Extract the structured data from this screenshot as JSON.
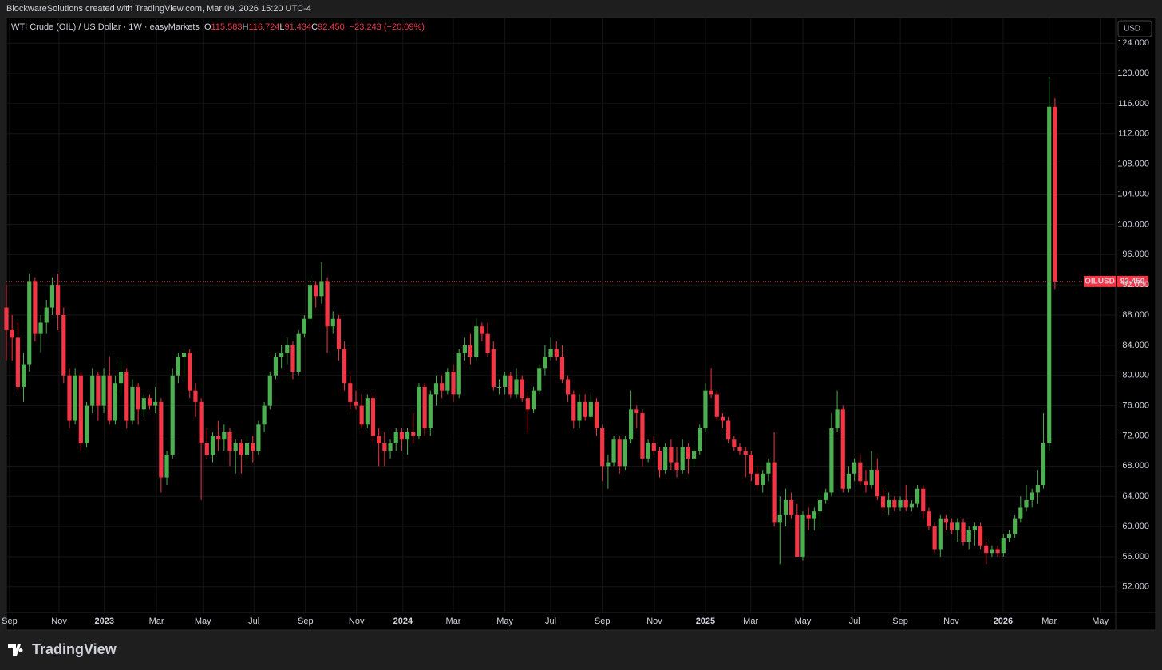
{
  "header": {
    "credit": "BlockwareSolutions created with TradingView.com, Mar 09, 2026 15:20 UTC-4"
  },
  "footer": {
    "brand": "TradingView"
  },
  "chart_data": {
    "type": "candlestick",
    "title": "WTI Crude (OIL) / US Dollar · 1W · easyMarkets",
    "legend": {
      "open_label": "O",
      "open": "115.583",
      "high_label": "H",
      "high": "116.724",
      "low_label": "L",
      "low": "91.434",
      "close_label": "C",
      "close": "92.450",
      "change": "−23.243 (−20.09%)"
    },
    "currency": "USD",
    "symbol": "OILUSD",
    "last_price": {
      "value": 92.45,
      "label": "92.450"
    },
    "up_color": "#4caf50",
    "down_color": "#f23645",
    "grid": true,
    "xlim": [
      0,
      193.6
    ],
    "ylim": [
      48.6,
      127.4
    ],
    "yticks": [
      {
        "value": 52,
        "label": "52.000"
      },
      {
        "value": 56,
        "label": "56.000"
      },
      {
        "value": 60,
        "label": "60.000"
      },
      {
        "value": 64,
        "label": "64.000"
      },
      {
        "value": 68,
        "label": "68.000"
      },
      {
        "value": 72,
        "label": "72.000"
      },
      {
        "value": 76,
        "label": "76.000"
      },
      {
        "value": 80,
        "label": "80.000"
      },
      {
        "value": 84,
        "label": "84.000"
      },
      {
        "value": 88,
        "label": "88.000"
      },
      {
        "value": 92,
        "label": "92.000"
      },
      {
        "value": 96,
        "label": "96.000"
      },
      {
        "value": 100,
        "label": "100.000"
      },
      {
        "value": 104,
        "label": "104.000"
      },
      {
        "value": 108,
        "label": "108.000"
      },
      {
        "value": 112,
        "label": "112.000"
      },
      {
        "value": 116,
        "label": "116.000"
      },
      {
        "value": 120,
        "label": "120.000"
      },
      {
        "value": 124,
        "label": "124.000"
      }
    ],
    "xticks": [
      {
        "value": 0.55,
        "label": "Sep"
      },
      {
        "value": 9.2,
        "label": "Nov"
      },
      {
        "value": 17.1,
        "label": "2023"
      },
      {
        "value": 26.2,
        "label": "Mar"
      },
      {
        "value": 34.3,
        "label": "May"
      },
      {
        "value": 43.2,
        "label": "Jul"
      },
      {
        "value": 52.2,
        "label": "Sep"
      },
      {
        "value": 61.1,
        "label": "Nov"
      },
      {
        "value": 69.2,
        "label": "2024"
      },
      {
        "value": 78,
        "label": "Mar"
      },
      {
        "value": 87,
        "label": "May"
      },
      {
        "value": 95,
        "label": "Jul"
      },
      {
        "value": 104,
        "label": "Sep"
      },
      {
        "value": 113.1,
        "label": "Nov"
      },
      {
        "value": 122,
        "label": "2025"
      },
      {
        "value": 129.9,
        "label": "Mar"
      },
      {
        "value": 139,
        "label": "May"
      },
      {
        "value": 148,
        "label": "Jul"
      },
      {
        "value": 156,
        "label": "Sep"
      },
      {
        "value": 164.9,
        "label": "Nov"
      },
      {
        "value": 173.95,
        "label": "2026"
      },
      {
        "value": 182,
        "label": "Mar"
      },
      {
        "value": 190.9,
        "label": "May"
      }
    ],
    "ohlc": [
      [
        89,
        92,
        82,
        86
      ],
      [
        86,
        88,
        82,
        85
      ],
      [
        85,
        87,
        78,
        78.5
      ],
      [
        78.5,
        83,
        76.5,
        81.5
      ],
      [
        81.5,
        93.5,
        80.5,
        92.5
      ],
      [
        92.5,
        93,
        84.5,
        85.5
      ],
      [
        85.5,
        88,
        83,
        87
      ],
      [
        87,
        90,
        85.5,
        89
      ],
      [
        89,
        93,
        88,
        92
      ],
      [
        92,
        93.5,
        86,
        88
      ],
      [
        88,
        89,
        79,
        80
      ],
      [
        80,
        81,
        73,
        74
      ],
      [
        74,
        81,
        73.5,
        80
      ],
      [
        80,
        80.5,
        70,
        71
      ],
      [
        71,
        76.5,
        70.5,
        76
      ],
      [
        76,
        81,
        75,
        80
      ],
      [
        80,
        80.5,
        74,
        76
      ],
      [
        76,
        81,
        75,
        80
      ],
      [
        80,
        82.5,
        73.5,
        74
      ],
      [
        74,
        80,
        73.5,
        79
      ],
      [
        79,
        82,
        77.5,
        80.5
      ],
      [
        80.5,
        81,
        73,
        74
      ],
      [
        74,
        79.5,
        73.5,
        78.5
      ],
      [
        78.5,
        79,
        73.5,
        75.5
      ],
      [
        75.5,
        77.5,
        74.5,
        77
      ],
      [
        77,
        77.5,
        75.5,
        76
      ],
      [
        76,
        78.5,
        75,
        76.5
      ],
      [
        76.5,
        77,
        64.5,
        66.5
      ],
      [
        66.5,
        70,
        65.5,
        69.5
      ],
      [
        69.5,
        81,
        69,
        80
      ],
      [
        80,
        83,
        79,
        82.5
      ],
      [
        82.5,
        83.5,
        79.5,
        83
      ],
      [
        83,
        83.5,
        77,
        78
      ],
      [
        78,
        79,
        74.5,
        76.5
      ],
      [
        76.5,
        77,
        63.5,
        71
      ],
      [
        71,
        73,
        69,
        69.5
      ],
      [
        69.5,
        72.5,
        68.5,
        72
      ],
      [
        72,
        74,
        70,
        71.5
      ],
      [
        71.5,
        73.5,
        70,
        72.5
      ],
      [
        72.5,
        73,
        68,
        70
      ],
      [
        70,
        71.5,
        67,
        71
      ],
      [
        71,
        71.5,
        67,
        69.5
      ],
      [
        69.5,
        72,
        68.5,
        71
      ],
      [
        71,
        72,
        68.5,
        70
      ],
      [
        70,
        74,
        69.5,
        73.5
      ],
      [
        73.5,
        76.5,
        72.5,
        76
      ],
      [
        76,
        80.5,
        75.5,
        80
      ],
      [
        80,
        83,
        79.5,
        82.5
      ],
      [
        82.5,
        84,
        81,
        83
      ],
      [
        83,
        85,
        81.5,
        84
      ],
      [
        84,
        84.5,
        79.5,
        80.5
      ],
      [
        80.5,
        86,
        80,
        85.5
      ],
      [
        85.5,
        88,
        85,
        87.5
      ],
      [
        87.5,
        93,
        87,
        92
      ],
      [
        92,
        92.5,
        89,
        90.5
      ],
      [
        90.5,
        95,
        89.5,
        92.5
      ],
      [
        92.5,
        93,
        83,
        86.5
      ],
      [
        86.5,
        88.5,
        85.5,
        87.5
      ],
      [
        87.5,
        88,
        82,
        83.5
      ],
      [
        83.5,
        84.5,
        78,
        79
      ],
      [
        79,
        80,
        75.5,
        76.5
      ],
      [
        76.5,
        78,
        75.5,
        76
      ],
      [
        76,
        77.5,
        73,
        73.5
      ],
      [
        73.5,
        77.5,
        73,
        77
      ],
      [
        77,
        77.5,
        71,
        72
      ],
      [
        72,
        73,
        68,
        71
      ],
      [
        71,
        72.5,
        68,
        70
      ],
      [
        70,
        71.5,
        69,
        71
      ],
      [
        71,
        73,
        70,
        72.5
      ],
      [
        72.5,
        73,
        70,
        71.5
      ],
      [
        71.5,
        73,
        69.5,
        72.5
      ],
      [
        72.5,
        75,
        71,
        72
      ],
      [
        72,
        79,
        71.5,
        78.5
      ],
      [
        78.5,
        79,
        72,
        73
      ],
      [
        73,
        78,
        72,
        77.5
      ],
      [
        77.5,
        80,
        76,
        79
      ],
      [
        79,
        80,
        77,
        78
      ],
      [
        78,
        81,
        77.5,
        80.5
      ],
      [
        80.5,
        81.5,
        76.5,
        77.5
      ],
      [
        77.5,
        83.5,
        77,
        83
      ],
      [
        83,
        85,
        82,
        84
      ],
      [
        84,
        85.5,
        81.5,
        82.5
      ],
      [
        82.5,
        87.5,
        82,
        86.5
      ],
      [
        86.5,
        87,
        84.5,
        85.5
      ],
      [
        85.5,
        87,
        82.5,
        83
      ],
      [
        83.5,
        84.5,
        78,
        78.5
      ],
      [
        78.5,
        79.5,
        77.5,
        78.5
      ],
      [
        78.5,
        80.5,
        77.5,
        80
      ],
      [
        80,
        80.5,
        77,
        77.5
      ],
      [
        77.5,
        81,
        77,
        79.5
      ],
      [
        79.5,
        80,
        76.5,
        77
      ],
      [
        77,
        77.5,
        72.5,
        75.5
      ],
      [
        75.5,
        78.5,
        75,
        78
      ],
      [
        78,
        81.5,
        77.5,
        81
      ],
      [
        81,
        84,
        80,
        82.5
      ],
      [
        82.5,
        85,
        82,
        83.5
      ],
      [
        83.5,
        84.5,
        82,
        82.5
      ],
      [
        82.5,
        84,
        79,
        79.5
      ],
      [
        79.5,
        80,
        76.5,
        77.5
      ],
      [
        77.5,
        78,
        73,
        74
      ],
      [
        74,
        77.5,
        73,
        76.5
      ],
      [
        76.5,
        77.5,
        74,
        74.5
      ],
      [
        74.5,
        77.5,
        74,
        76.5
      ],
      [
        76.5,
        77,
        72,
        73
      ],
      [
        73,
        73.5,
        66,
        68
      ],
      [
        68,
        69.5,
        65,
        68.5
      ],
      [
        68.5,
        72,
        68,
        71.5
      ],
      [
        71.5,
        72,
        67,
        68
      ],
      [
        68,
        72,
        67.5,
        71.5
      ],
      [
        71.5,
        78,
        71,
        75.5
      ],
      [
        75.5,
        76,
        73,
        75
      ],
      [
        75,
        75.5,
        68,
        69
      ],
      [
        69,
        71.5,
        68.5,
        71
      ],
      [
        71,
        72,
        69.5,
        70
      ],
      [
        70,
        70.5,
        66.5,
        67.5
      ],
      [
        67.5,
        71,
        67,
        70.5
      ],
      [
        70.5,
        71.5,
        67.5,
        68.5
      ],
      [
        68.5,
        70.5,
        66.5,
        67.5
      ],
      [
        67.5,
        71.5,
        67,
        70.5
      ],
      [
        70.5,
        71,
        67,
        69
      ],
      [
        69,
        71,
        68,
        70
      ],
      [
        70,
        73.5,
        69.5,
        73
      ],
      [
        73,
        79,
        72.5,
        78
      ],
      [
        78,
        81,
        77,
        77.5
      ],
      [
        77.5,
        78,
        74,
        74.5
      ],
      [
        74.5,
        75,
        73,
        74
      ],
      [
        74,
        74.5,
        71,
        71.5
      ],
      [
        71.5,
        72,
        70,
        70.5
      ],
      [
        70.5,
        71,
        69.5,
        70
      ],
      [
        70,
        70.5,
        66.5,
        69.5
      ],
      [
        69.5,
        70,
        66,
        67
      ],
      [
        67,
        68,
        65,
        65.5
      ],
      [
        65.5,
        67.5,
        64.5,
        67
      ],
      [
        67,
        69,
        66,
        68.5
      ],
      [
        68.5,
        72.5,
        60,
        60.5
      ],
      [
        60.5,
        64,
        55,
        61.5
      ],
      [
        61.5,
        65,
        60,
        63.5
      ],
      [
        63.5,
        64.5,
        61,
        61.5
      ],
      [
        61.5,
        63,
        56,
        56
      ],
      [
        56,
        62,
        55.5,
        61.5
      ],
      [
        61.5,
        62.5,
        59.5,
        61
      ],
      [
        61,
        62.5,
        59.5,
        62
      ],
      [
        62,
        64.5,
        60,
        63.5
      ],
      [
        63.5,
        65,
        63,
        64.5
      ],
      [
        64.5,
        75,
        64,
        73
      ],
      [
        73,
        78,
        72.5,
        75.5
      ],
      [
        75.5,
        76,
        64.5,
        65
      ],
      [
        65,
        68,
        64.5,
        67
      ],
      [
        67,
        69,
        66,
        68.5
      ],
      [
        68.5,
        69.5,
        65.5,
        66
      ],
      [
        66,
        67.5,
        64.5,
        65.5
      ],
      [
        65.5,
        70,
        65,
        67.5
      ],
      [
        67.5,
        69,
        63.5,
        64
      ],
      [
        64,
        65,
        62,
        62.5
      ],
      [
        62.5,
        64.5,
        61.5,
        63.5
      ],
      [
        63.5,
        64,
        62,
        62.5
      ],
      [
        62.5,
        64,
        62,
        63.5
      ],
      [
        63.5,
        65.5,
        62,
        62.5
      ],
      [
        62.5,
        63.5,
        62,
        63
      ],
      [
        63,
        65.5,
        62.5,
        65
      ],
      [
        65,
        65.5,
        61,
        62
      ],
      [
        62,
        62.5,
        59.5,
        60
      ],
      [
        60,
        60.5,
        56.5,
        57
      ],
      [
        57,
        61.5,
        56,
        61
      ],
      [
        61,
        61.5,
        59.5,
        60.5
      ],
      [
        60.5,
        61,
        59,
        59.5
      ],
      [
        59.5,
        61,
        58,
        60.5
      ],
      [
        60.5,
        61,
        57.5,
        58
      ],
      [
        58,
        60,
        57,
        59.5
      ],
      [
        59.5,
        60.5,
        57.5,
        60
      ],
      [
        60,
        60.5,
        57,
        57.5
      ],
      [
        57.5,
        58,
        55,
        56.5
      ],
      [
        56.5,
        57.5,
        56,
        57
      ],
      [
        57,
        57.5,
        56,
        56.5
      ],
      [
        56.5,
        59,
        56,
        58.5
      ],
      [
        58.5,
        59.5,
        58,
        59
      ],
      [
        59,
        61.5,
        58.5,
        61
      ],
      [
        61,
        64,
        60.5,
        62.5
      ],
      [
        62.5,
        65.5,
        62,
        63.5
      ],
      [
        63.5,
        65,
        62.5,
        64.5
      ],
      [
        64.5,
        67.5,
        63,
        65.5
      ],
      [
        65.5,
        75,
        65,
        71
      ],
      [
        71,
        119.5,
        70,
        115.6
      ],
      [
        115.583,
        116.724,
        91.434,
        92.45
      ]
    ]
  }
}
